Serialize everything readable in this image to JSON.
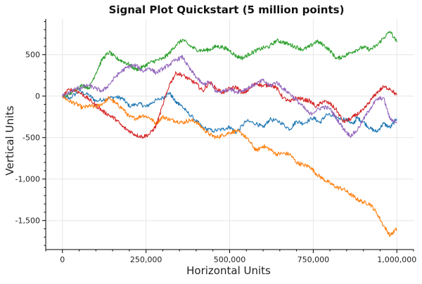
{
  "chart_data": {
    "type": "line",
    "title": "Signal Plot Quickstart (5 million points)",
    "xlabel": "Horizontal Units",
    "ylabel": "Vertical Units",
    "xlim": [
      -50000,
      1050000
    ],
    "ylim": [
      -1850,
      930
    ],
    "x_ticks": [
      0,
      250000,
      500000,
      750000,
      1000000
    ],
    "x_tick_labels": [
      "0",
      "250,000",
      "500,000",
      "750,000",
      "1,000,000"
    ],
    "y_ticks": [
      500,
      0,
      -500,
      -1000,
      -1500
    ],
    "y_tick_labels": [
      "500",
      "0",
      "-500",
      "-1,000",
      "-1,500"
    ],
    "grid": true,
    "legend": "none",
    "series": [
      {
        "color": "#1f77b4",
        "points": [
          [
            0,
            0
          ],
          [
            20000,
            -30
          ],
          [
            50000,
            60
          ],
          [
            80000,
            10
          ],
          [
            100000,
            -60
          ],
          [
            130000,
            -30
          ],
          [
            160000,
            -10
          ],
          [
            180000,
            -30
          ],
          [
            200000,
            -120
          ],
          [
            230000,
            -90
          ],
          [
            250000,
            -130
          ],
          [
            270000,
            -70
          ],
          [
            300000,
            -20
          ],
          [
            320000,
            40
          ],
          [
            340000,
            -80
          ],
          [
            350000,
            -90
          ],
          [
            370000,
            -180
          ],
          [
            400000,
            -300
          ],
          [
            420000,
            -380
          ],
          [
            450000,
            -420
          ],
          [
            480000,
            -400
          ],
          [
            500000,
            -370
          ],
          [
            520000,
            -440
          ],
          [
            550000,
            -300
          ],
          [
            580000,
            -330
          ],
          [
            600000,
            -380
          ],
          [
            620000,
            -280
          ],
          [
            650000,
            -310
          ],
          [
            680000,
            -400
          ],
          [
            700000,
            -300
          ],
          [
            720000,
            -330
          ],
          [
            750000,
            -260
          ],
          [
            770000,
            -320
          ],
          [
            790000,
            -220
          ],
          [
            820000,
            -260
          ],
          [
            850000,
            -280
          ],
          [
            870000,
            -340
          ],
          [
            880000,
            -260
          ],
          [
            900000,
            -310
          ],
          [
            920000,
            -390
          ],
          [
            940000,
            -430
          ],
          [
            960000,
            -330
          ],
          [
            980000,
            -380
          ],
          [
            1000000,
            -270
          ]
        ]
      },
      {
        "color": "#ff7f0e",
        "points": [
          [
            0,
            0
          ],
          [
            20000,
            -60
          ],
          [
            40000,
            -90
          ],
          [
            60000,
            -140
          ],
          [
            80000,
            -120
          ],
          [
            100000,
            -130
          ],
          [
            120000,
            -90
          ],
          [
            140000,
            -20
          ],
          [
            160000,
            -90
          ],
          [
            180000,
            -150
          ],
          [
            200000,
            -250
          ],
          [
            220000,
            -270
          ],
          [
            240000,
            -230
          ],
          [
            260000,
            -260
          ],
          [
            280000,
            -330
          ],
          [
            300000,
            -250
          ],
          [
            320000,
            -280
          ],
          [
            340000,
            -300
          ],
          [
            360000,
            -320
          ],
          [
            380000,
            -290
          ],
          [
            400000,
            -310
          ],
          [
            420000,
            -390
          ],
          [
            440000,
            -460
          ],
          [
            460000,
            -500
          ],
          [
            480000,
            -470
          ],
          [
            500000,
            -440
          ],
          [
            520000,
            -420
          ],
          [
            540000,
            -460
          ],
          [
            560000,
            -550
          ],
          [
            580000,
            -660
          ],
          [
            600000,
            -600
          ],
          [
            620000,
            -640
          ],
          [
            640000,
            -700
          ],
          [
            660000,
            -690
          ],
          [
            680000,
            -700
          ],
          [
            700000,
            -800
          ],
          [
            720000,
            -830
          ],
          [
            740000,
            -850
          ],
          [
            760000,
            -940
          ],
          [
            780000,
            -1000
          ],
          [
            800000,
            -1050
          ],
          [
            820000,
            -1100
          ],
          [
            840000,
            -1120
          ],
          [
            860000,
            -1180
          ],
          [
            880000,
            -1240
          ],
          [
            900000,
            -1280
          ],
          [
            920000,
            -1300
          ],
          [
            940000,
            -1410
          ],
          [
            960000,
            -1560
          ],
          [
            980000,
            -1680
          ],
          [
            1000000,
            -1600
          ]
        ]
      },
      {
        "color": "#2ca02c",
        "points": [
          [
            0,
            0
          ],
          [
            20000,
            20
          ],
          [
            40000,
            80
          ],
          [
            60000,
            130
          ],
          [
            80000,
            100
          ],
          [
            100000,
            280
          ],
          [
            120000,
            450
          ],
          [
            140000,
            530
          ],
          [
            160000,
            460
          ],
          [
            180000,
            420
          ],
          [
            200000,
            380
          ],
          [
            220000,
            320
          ],
          [
            240000,
            350
          ],
          [
            260000,
            400
          ],
          [
            280000,
            430
          ],
          [
            300000,
            450
          ],
          [
            320000,
            520
          ],
          [
            340000,
            620
          ],
          [
            360000,
            680
          ],
          [
            380000,
            610
          ],
          [
            400000,
            560
          ],
          [
            420000,
            550
          ],
          [
            440000,
            560
          ],
          [
            460000,
            600
          ],
          [
            480000,
            590
          ],
          [
            500000,
            550
          ],
          [
            520000,
            480
          ],
          [
            540000,
            460
          ],
          [
            560000,
            510
          ],
          [
            580000,
            550
          ],
          [
            600000,
            580
          ],
          [
            620000,
            600
          ],
          [
            640000,
            670
          ],
          [
            660000,
            650
          ],
          [
            680000,
            620
          ],
          [
            700000,
            590
          ],
          [
            720000,
            560
          ],
          [
            740000,
            600
          ],
          [
            760000,
            660
          ],
          [
            780000,
            620
          ],
          [
            800000,
            550
          ],
          [
            820000,
            450
          ],
          [
            840000,
            480
          ],
          [
            860000,
            520
          ],
          [
            880000,
            560
          ],
          [
            900000,
            590
          ],
          [
            920000,
            560
          ],
          [
            940000,
            610
          ],
          [
            960000,
            700
          ],
          [
            980000,
            780
          ],
          [
            1000000,
            650
          ]
        ]
      },
      {
        "color": "#d62728",
        "points": [
          [
            0,
            0
          ],
          [
            20000,
            80
          ],
          [
            40000,
            70
          ],
          [
            60000,
            20
          ],
          [
            80000,
            -40
          ],
          [
            100000,
            -110
          ],
          [
            120000,
            -180
          ],
          [
            140000,
            -230
          ],
          [
            160000,
            -280
          ],
          [
            180000,
            -370
          ],
          [
            200000,
            -420
          ],
          [
            220000,
            -470
          ],
          [
            240000,
            -490
          ],
          [
            260000,
            -460
          ],
          [
            280000,
            -360
          ],
          [
            300000,
            -110
          ],
          [
            320000,
            140
          ],
          [
            340000,
            280
          ],
          [
            360000,
            250
          ],
          [
            380000,
            200
          ],
          [
            400000,
            150
          ],
          [
            420000,
            60
          ],
          [
            440000,
            170
          ],
          [
            460000,
            90
          ],
          [
            480000,
            40
          ],
          [
            500000,
            90
          ],
          [
            520000,
            110
          ],
          [
            540000,
            30
          ],
          [
            560000,
            90
          ],
          [
            580000,
            160
          ],
          [
            600000,
            120
          ],
          [
            620000,
            140
          ],
          [
            640000,
            100
          ],
          [
            660000,
            -20
          ],
          [
            680000,
            -70
          ],
          [
            700000,
            -20
          ],
          [
            720000,
            -40
          ],
          [
            740000,
            -60
          ],
          [
            760000,
            -130
          ],
          [
            780000,
            -60
          ],
          [
            800000,
            -90
          ],
          [
            820000,
            -170
          ],
          [
            840000,
            -310
          ],
          [
            860000,
            -280
          ],
          [
            880000,
            -220
          ],
          [
            900000,
            -170
          ],
          [
            920000,
            -60
          ],
          [
            940000,
            40
          ],
          [
            960000,
            110
          ],
          [
            980000,
            90
          ],
          [
            1000000,
            10
          ]
        ]
      },
      {
        "color": "#9467bd",
        "points": [
          [
            0,
            0
          ],
          [
            20000,
            40
          ],
          [
            40000,
            90
          ],
          [
            60000,
            110
          ],
          [
            80000,
            130
          ],
          [
            100000,
            90
          ],
          [
            120000,
            60
          ],
          [
            140000,
            140
          ],
          [
            160000,
            240
          ],
          [
            180000,
            310
          ],
          [
            200000,
            360
          ],
          [
            220000,
            370
          ],
          [
            240000,
            300
          ],
          [
            260000,
            340
          ],
          [
            280000,
            280
          ],
          [
            300000,
            330
          ],
          [
            320000,
            380
          ],
          [
            340000,
            440
          ],
          [
            360000,
            470
          ],
          [
            380000,
            330
          ],
          [
            400000,
            230
          ],
          [
            420000,
            140
          ],
          [
            440000,
            170
          ],
          [
            460000,
            50
          ],
          [
            480000,
            60
          ],
          [
            500000,
            90
          ],
          [
            520000,
            50
          ],
          [
            540000,
            70
          ],
          [
            560000,
            110
          ],
          [
            580000,
            150
          ],
          [
            600000,
            190
          ],
          [
            620000,
            120
          ],
          [
            640000,
            170
          ],
          [
            660000,
            90
          ],
          [
            680000,
            30
          ],
          [
            700000,
            -50
          ],
          [
            720000,
            -130
          ],
          [
            740000,
            -220
          ],
          [
            760000,
            -170
          ],
          [
            780000,
            -130
          ],
          [
            800000,
            -150
          ],
          [
            820000,
            -270
          ],
          [
            840000,
            -390
          ],
          [
            860000,
            -480
          ],
          [
            880000,
            -420
          ],
          [
            900000,
            -280
          ],
          [
            920000,
            -150
          ],
          [
            940000,
            -40
          ],
          [
            960000,
            -20
          ],
          [
            980000,
            -280
          ],
          [
            1000000,
            -310
          ]
        ]
      }
    ]
  }
}
